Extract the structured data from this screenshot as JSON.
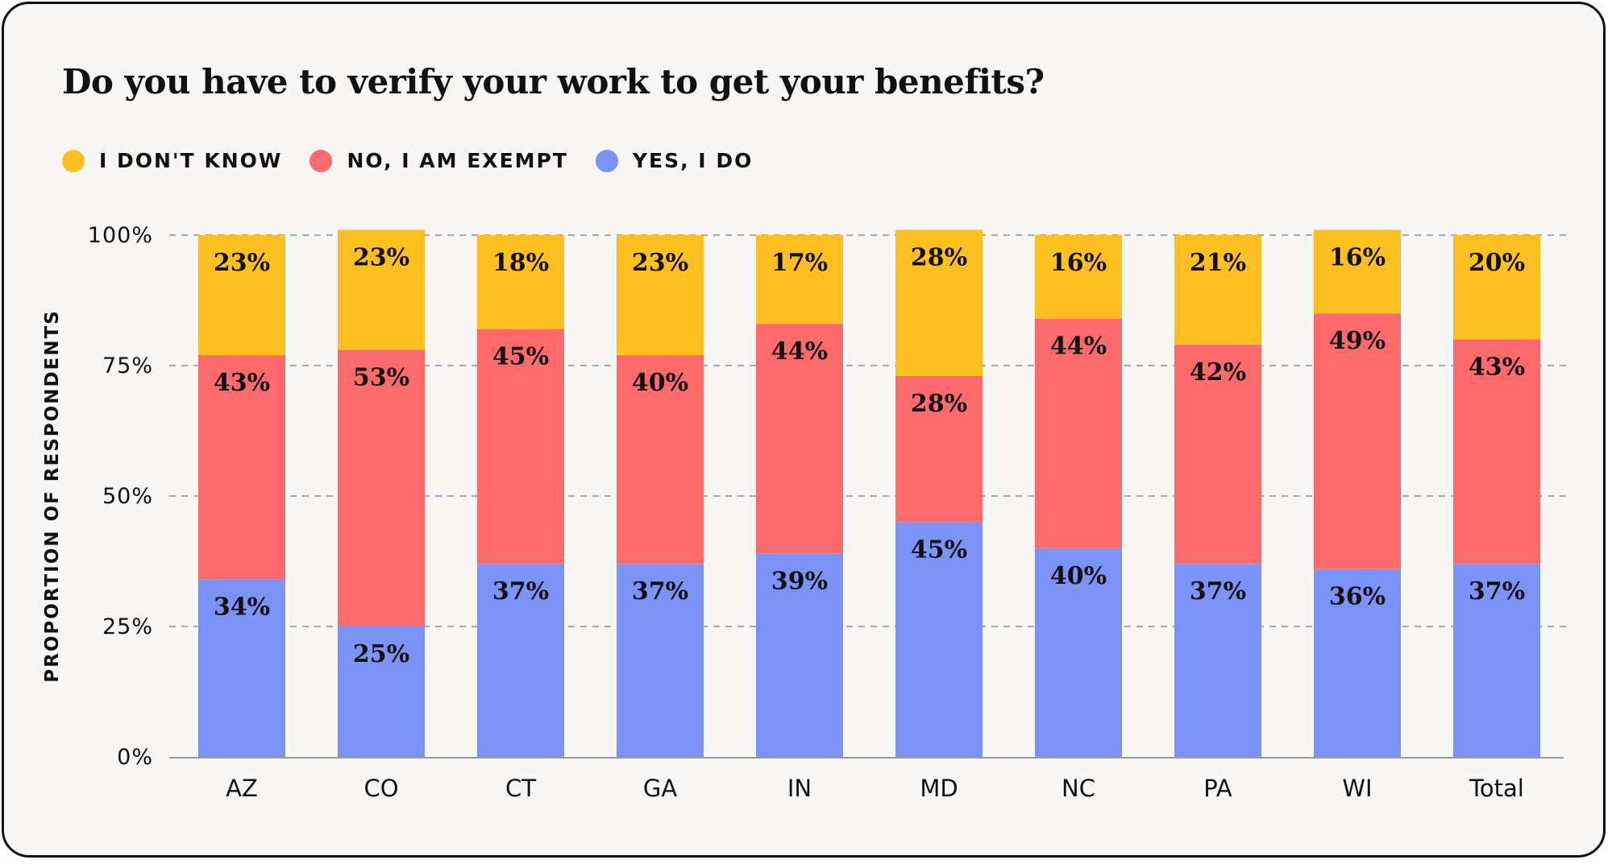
{
  "chart_data": {
    "type": "bar",
    "stacked": true,
    "title": "Do you have to verify your work to get your benefits?",
    "ylabel": "PROPORTION OF RESPONDENTS",
    "xlabel": "",
    "ylim": [
      0,
      100
    ],
    "yticks": [
      "0%",
      "25%",
      "50%",
      "75%",
      "100%"
    ],
    "grid": true,
    "legend_position": "top-left",
    "categories": [
      "AZ",
      "CO",
      "CT",
      "GA",
      "IN",
      "MD",
      "NC",
      "PA",
      "WI",
      "Total"
    ],
    "series": [
      {
        "name": "YES, I DO",
        "color": "#7b93f7",
        "values": [
          34,
          25,
          37,
          37,
          39,
          45,
          40,
          37,
          36,
          37
        ]
      },
      {
        "name": "NO, I AM EXEMPT",
        "color": "#fd6a6b",
        "values": [
          43,
          53,
          45,
          40,
          44,
          28,
          44,
          42,
          49,
          43
        ]
      },
      {
        "name": "I DON'T KNOW",
        "color": "#fdc020",
        "values": [
          23,
          23,
          18,
          23,
          17,
          28,
          16,
          21,
          16,
          20
        ]
      }
    ],
    "legend_order": [
      2,
      1,
      0
    ]
  }
}
